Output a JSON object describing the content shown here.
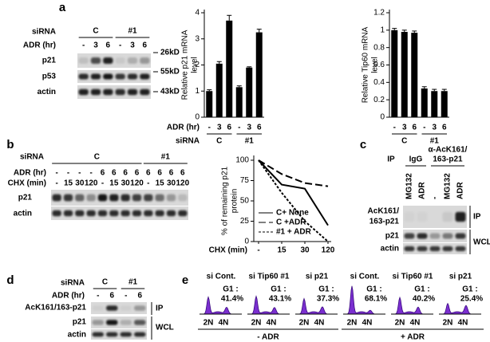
{
  "panel_letters": [
    "a",
    "b",
    "c",
    "d",
    "e"
  ],
  "blot_a": {
    "sirna_label": "siRNA",
    "groups": [
      "C",
      "#1"
    ],
    "adr_label": "ADR (hr)",
    "adr": [
      "-",
      "3",
      "6",
      "-",
      "3",
      "6"
    ],
    "rows": [
      "p21",
      "p53",
      "actin"
    ],
    "markers": [
      "26kD",
      "55kD",
      "43kD"
    ]
  },
  "blot_b": {
    "sirna_label": "siRNA",
    "groups": [
      "C",
      "#1"
    ],
    "adr_label": "ADR (hr)",
    "adr": [
      "-",
      "-",
      "-",
      "-",
      "6",
      "6",
      "6",
      "6",
      "6",
      "6",
      "6",
      "6"
    ],
    "chx_label": "CHX (min)",
    "chx": [
      "-",
      "15",
      "30",
      "120",
      "-",
      "15",
      "30",
      "120",
      "-",
      "15",
      "30",
      "120"
    ],
    "rows": [
      "p21",
      "actin"
    ]
  },
  "blot_c": {
    "ip_label": "IP",
    "groups": [
      [
        "IgG"
      ],
      [
        "α-AcK161/",
        "163-p21"
      ]
    ],
    "lanes": [
      "MG132",
      "ADR",
      "-",
      "MG132",
      "ADR"
    ],
    "rows": [
      [
        "AcK161/",
        "163-p21"
      ],
      [
        "p21"
      ],
      [
        "actin"
      ]
    ],
    "side_labels": [
      "IP",
      "WCL"
    ]
  },
  "blot_d": {
    "sirna_label": "siRNA",
    "groups": [
      "C",
      "#1"
    ],
    "adr_label": "ADR (hr)",
    "adr": [
      "-",
      "6",
      "-",
      "6"
    ],
    "rows": [
      "AcK161/163-p21",
      "p21",
      "actin"
    ],
    "side_labels": [
      "IP",
      "WCL"
    ]
  },
  "chart_data": [
    {
      "type": "bar",
      "y_label": [
        "Relative p21 mRNA",
        "level"
      ],
      "x_label": "ADR (hr)",
      "group_label": "siRNA",
      "groups": [
        "C",
        "#1"
      ],
      "categories": [
        "-",
        "3",
        "6",
        "-",
        "3",
        "6"
      ],
      "values": [
        1.0,
        2.05,
        3.7,
        1.15,
        1.9,
        3.25
      ],
      "errors": [
        0.05,
        0.08,
        0.2,
        0.05,
        0.03,
        0.12
      ],
      "color": "#000000",
      "ylim": [
        0,
        4
      ],
      "yticks": [
        0,
        1,
        2,
        3,
        4
      ]
    },
    {
      "type": "bar",
      "y_label": [
        "Relative Tip60 mRNA",
        "level"
      ],
      "groups": [
        "C",
        "#1"
      ],
      "categories": [
        "-",
        "3",
        "6",
        "-",
        "3",
        "6"
      ],
      "values": [
        1.0,
        0.98,
        0.97,
        0.33,
        0.3,
        0.3
      ],
      "errors": [
        0.02,
        0.02,
        0.02,
        0.02,
        0.02,
        0.02
      ],
      "color": "#000000",
      "ylim": [
        0,
        1.2
      ],
      "yticks": [
        0,
        0.2,
        0.4,
        0.6,
        0.8,
        1,
        1.2
      ]
    },
    {
      "type": "line",
      "y_label": [
        "% of remaining p21",
        "protein"
      ],
      "x_label": "CHX (min)",
      "categories": [
        "-",
        "15",
        "30",
        "120"
      ],
      "series": [
        {
          "name": "C+ None",
          "color": "#000000",
          "dash": "solid",
          "values": [
            100,
            70,
            65,
            20
          ]
        },
        {
          "name": "C +ADR",
          "color": "#000000",
          "dash": "dashed",
          "values": [
            100,
            83,
            72,
            68
          ]
        },
        {
          "name": "#1 + ADR",
          "color": "#000000",
          "dash": "dotted",
          "values": [
            100,
            60,
            25,
            0
          ]
        }
      ],
      "ylim": [
        0,
        100
      ],
      "yticks": [
        0,
        25,
        50,
        75,
        100
      ],
      "legend": "lower left"
    }
  ],
  "flow_e": {
    "panels": [
      {
        "title": "si Cont.",
        "g1_label": "G1 :",
        "g1": {
          "value": 41.4,
          "label": "41.4%"
        }
      },
      {
        "title": "si Tip60 #1",
        "g1_label": "G1 :",
        "g1": {
          "value": 43.1,
          "label": "43.1%"
        }
      },
      {
        "title": "si p21",
        "g1_label": "G1 :",
        "g1": {
          "value": 37.3,
          "label": "37.3%"
        }
      },
      {
        "title": "si Cont.",
        "g1_label": "G1 :",
        "g1": {
          "value": 68.1,
          "label": "68.1%"
        }
      },
      {
        "title": "si Tip60 #1",
        "g1_label": "G1 :",
        "g1": {
          "value": 40.2,
          "label": "40.2%"
        }
      },
      {
        "title": "si p21",
        "g1_label": "G1 :",
        "g1": {
          "value": 25.4,
          "label": "25.4%"
        }
      }
    ],
    "axis_labels": [
      "2N",
      "4N"
    ],
    "conditions": [
      "- ADR",
      "+ ADR"
    ]
  }
}
